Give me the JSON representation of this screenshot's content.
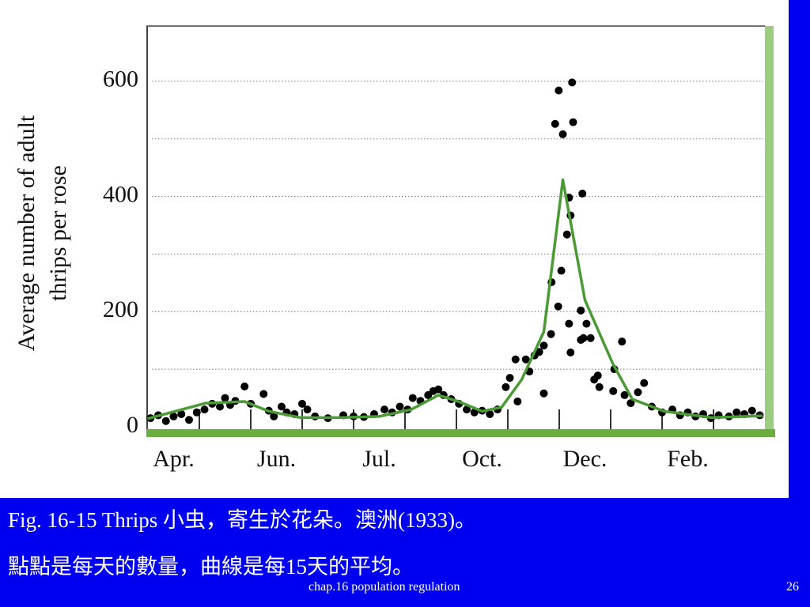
{
  "chart_data": {
    "type": "scatter",
    "ylabel": [
      "Average number of adult",
      "thrips per rose"
    ],
    "xlim": [
      -0.5,
      11.5
    ],
    "xticks": [
      {
        "value": 0,
        "label": "Apr."
      },
      {
        "value": 2,
        "label": "Jun."
      },
      {
        "value": 4,
        "label": "Jul."
      },
      {
        "value": 6,
        "label": "Oct."
      },
      {
        "value": 8,
        "label": "Dec."
      },
      {
        "value": 10,
        "label": "Feb."
      }
    ],
    "xminorticks": [
      0.5,
      1.5,
      2.5,
      3.5,
      4.5,
      5.5,
      6.5,
      7.5,
      8.5,
      9.5,
      10.5
    ],
    "ylim": [
      0,
      700
    ],
    "yticks": [
      0,
      200,
      400,
      600
    ],
    "ygrid": [
      100,
      200,
      300,
      400,
      500,
      600
    ],
    "series": [
      {
        "type": "scatter",
        "color": "#000000",
        "x": [
          -0.45,
          -0.3,
          -0.15,
          0,
          0.15,
          0.3,
          0.45,
          0.6,
          0.75,
          0.9,
          1.0,
          1.1,
          1.2,
          1.38,
          1.5,
          1.75,
          1.85,
          1.95,
          2.1,
          2.2,
          2.35,
          2.5,
          2.6,
          2.75,
          3.0,
          3.3,
          3.5,
          3.7,
          3.9,
          4.1,
          4.25,
          4.4,
          4.55,
          4.65,
          4.8,
          4.95,
          5.05,
          5.15,
          5.25,
          5.4,
          5.55,
          5.7,
          5.85,
          6.0,
          6.15,
          6.3,
          6.46,
          6.54,
          6.65,
          6.69,
          6.85,
          6.92,
          7.02,
          7.11,
          7.2,
          7.2,
          7.34,
          7.35,
          7.42,
          7.48,
          7.49,
          7.54,
          7.57,
          7.65,
          7.69,
          7.69,
          7.72,
          7.72,
          7.75,
          7.77,
          7.92,
          7.92,
          7.95,
          7.97,
          8.03,
          8.11,
          8.18,
          8.25,
          8.28,
          8.55,
          8.57,
          8.72,
          8.77,
          8.89,
          9.03,
          9.15,
          9.3,
          9.5,
          9.7,
          9.85,
          10.0,
          10.15,
          10.3,
          10.45,
          10.6,
          10.8,
          10.95,
          11.1,
          11.25,
          11.4
        ],
        "values": [
          15,
          20,
          10,
          18,
          22,
          12,
          25,
          30,
          40,
          35,
          50,
          38,
          45,
          70,
          40,
          57,
          28,
          18,
          35,
          25,
          22,
          40,
          30,
          18,
          15,
          20,
          18,
          17,
          22,
          30,
          25,
          35,
          30,
          50,
          45,
          55,
          62,
          65,
          55,
          48,
          40,
          30,
          25,
          28,
          22,
          30,
          69,
          85,
          117,
          44,
          117,
          96,
          124,
          130,
          141,
          58,
          161,
          251,
          526,
          209,
          584,
          271,
          508,
          334,
          398,
          179,
          367,
          129,
          598,
          529,
          202,
          151,
          405,
          154,
          179,
          154,
          82,
          89,
          69,
          62,
          100,
          148,
          55,
          41,
          60,
          76,
          35,
          25,
          30,
          20,
          25,
          18,
          22,
          15,
          20,
          18,
          25,
          22,
          28,
          20
        ]
      },
      {
        "type": "line",
        "color": "#4b9a35",
        "x": [
          -0.51,
          0.62,
          1.38,
          1.85,
          2.46,
          3.23,
          4.0,
          4.62,
          5.15,
          5.54,
          6.0,
          6.38,
          6.77,
          7.2,
          7.57,
          8.0,
          8.54,
          8.92,
          9.54,
          10.46,
          11.46
        ],
        "values": [
          14,
          41,
          44,
          27,
          16,
          16,
          18,
          30,
          55,
          44,
          27,
          34,
          82,
          165,
          429,
          220,
          110,
          48,
          27,
          16,
          19
        ]
      }
    ]
  },
  "caption": [
    "Fig. 16-15 Thrips 小虫，寄生於花朵。澳洲(1933)。",
    "點點是每天的數量，曲線是每15天的平均。"
  ],
  "footer": {
    "text": "chap.16 population regulation",
    "page": "26"
  }
}
